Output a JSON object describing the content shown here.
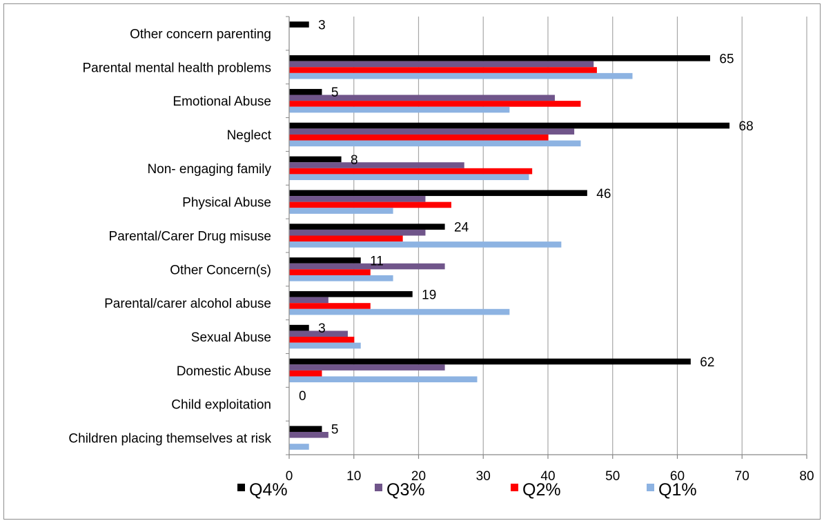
{
  "chart_data": {
    "type": "bar",
    "orientation": "horizontal",
    "categories": [
      "Other concern parenting",
      "Parental mental health problems",
      "Emotional Abuse",
      "Neglect",
      "Non- engaging family",
      "Physical Abuse",
      "Parental/Carer Drug misuse",
      "Other Concern(s)",
      "Parental/carer alcohol abuse",
      "Sexual Abuse",
      "Domestic Abuse",
      "Child exploitation",
      "Children placing themselves at risk"
    ],
    "series": [
      {
        "name": "Q4%",
        "color": "#000000",
        "values": [
          3,
          65,
          5,
          68,
          8,
          46,
          24,
          11,
          19,
          3,
          62,
          0,
          5
        ]
      },
      {
        "name": "Q3%",
        "color": "#70558a",
        "values": [
          0,
          47,
          41,
          44,
          27,
          21,
          21,
          24,
          6,
          9,
          24,
          0,
          6
        ]
      },
      {
        "name": "Q2%",
        "color": "#ff0000",
        "values": [
          0,
          47.5,
          45,
          40,
          37.5,
          25,
          17.5,
          12.5,
          12.5,
          10,
          5,
          0,
          0
        ]
      },
      {
        "name": "Q1%",
        "color": "#8db3e2",
        "values": [
          0,
          53,
          34,
          45,
          37,
          16,
          42,
          16,
          34,
          11,
          29,
          0,
          3
        ]
      }
    ],
    "data_labels": [
      "3",
      "65",
      "5",
      "68",
      "8",
      "46",
      "24",
      "11",
      "19",
      "3",
      "62",
      "0",
      "5"
    ],
    "x_ticks": [
      "0",
      "10",
      "20",
      "30",
      "40",
      "50",
      "60",
      "70",
      "80"
    ],
    "xlim": [
      0,
      80
    ],
    "grid": true,
    "legend_position": "bottom",
    "title": "",
    "xlabel": "",
    "ylabel": ""
  }
}
